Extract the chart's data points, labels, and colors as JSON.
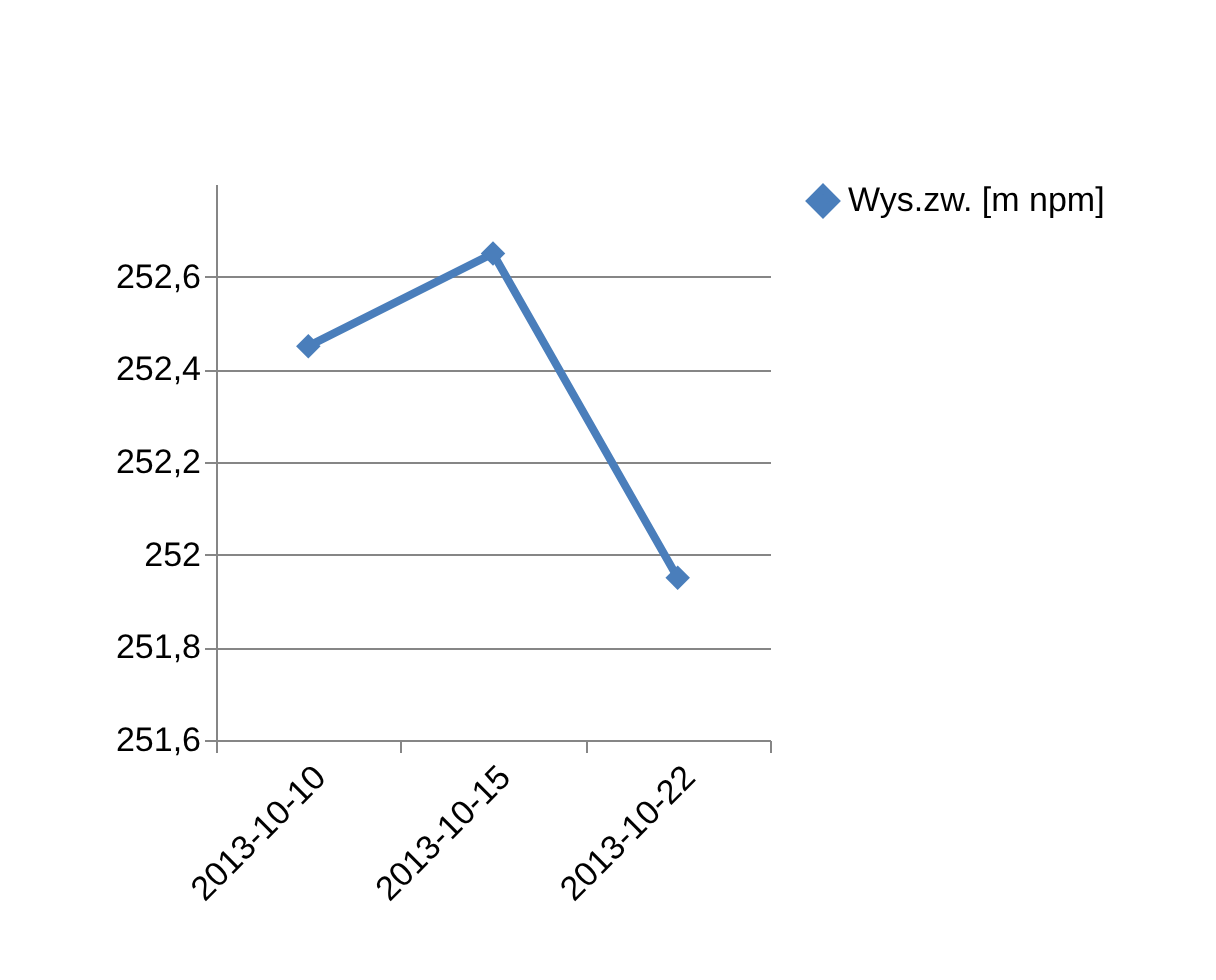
{
  "chart_data": {
    "type": "line",
    "categories": [
      "2013-10-10",
      "2013-10-15",
      "2013-10-22"
    ],
    "series": [
      {
        "name": "Wys.zw. [m npm]",
        "color": "#4a7ebb",
        "values": [
          252.45,
          252.65,
          251.95
        ]
      }
    ],
    "ylim": [
      251.6,
      252.8
    ],
    "yticks": [
      {
        "value": 251.6,
        "label": "251,6"
      },
      {
        "value": 251.8,
        "label": "251,8"
      },
      {
        "value": 252,
        "label": "252"
      },
      {
        "value": 252.2,
        "label": "252,2"
      },
      {
        "value": 252.4,
        "label": "252,4"
      },
      {
        "value": 252.6,
        "label": "252,6"
      }
    ],
    "grid": "y",
    "legend": "right",
    "marker": "diamond",
    "line_style": "solid"
  }
}
